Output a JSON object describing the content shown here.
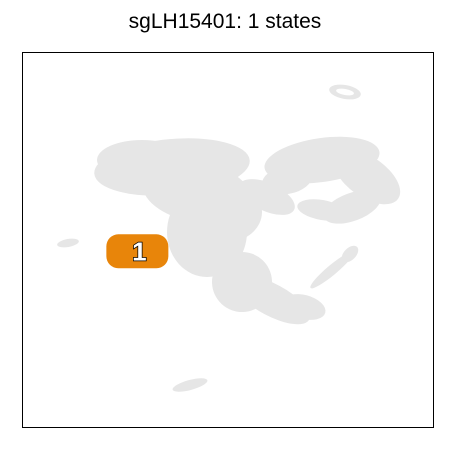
{
  "chart_data": {
    "type": "scatter",
    "title": "sgLH15401: 1 states",
    "xlabel": "",
    "ylabel": "",
    "grid": false,
    "background_color": "#e6e6e6",
    "highlight_color": "#e8850a",
    "states": [
      {
        "label": "1",
        "x": 0.28,
        "y": 0.53
      }
    ]
  }
}
